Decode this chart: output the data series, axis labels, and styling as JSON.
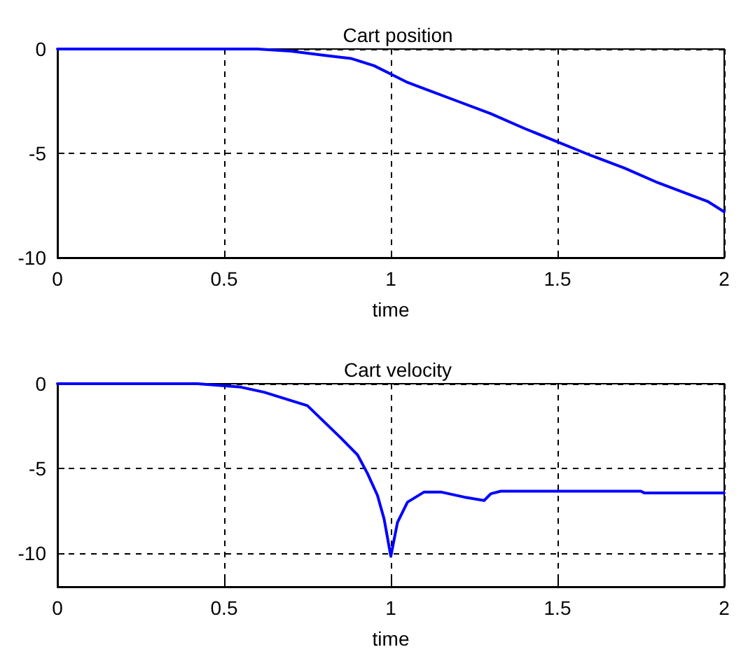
{
  "chart_data": [
    {
      "type": "line",
      "title": "Cart position",
      "xlabel": "time",
      "xlim": [
        0,
        2
      ],
      "ylim": [
        -10,
        0
      ],
      "xticks": [
        0,
        0.5,
        1,
        1.5,
        2
      ],
      "yticks": [
        -10,
        -5,
        0
      ],
      "grid": true,
      "marker": "none",
      "line_style": "solid",
      "series": [
        {
          "color": "#0000ff",
          "x": [
            0,
            0.6,
            0.7,
            0.8,
            0.88,
            0.95,
            1.0,
            1.05,
            1.1,
            1.2,
            1.3,
            1.4,
            1.5,
            1.6,
            1.7,
            1.8,
            1.9,
            1.95,
            2.0
          ],
          "values": [
            0,
            0,
            -0.1,
            -0.3,
            -0.45,
            -0.8,
            -1.2,
            -1.6,
            -1.9,
            -2.5,
            -3.1,
            -3.8,
            -4.45,
            -5.1,
            -5.7,
            -6.4,
            -7.0,
            -7.3,
            -7.8
          ]
        }
      ]
    },
    {
      "type": "line",
      "title": "Cart velocity",
      "xlabel": "time",
      "xlim": [
        0,
        2
      ],
      "ylim": [
        -12,
        0
      ],
      "xticks": [
        0,
        0.5,
        1,
        1.5,
        2
      ],
      "yticks": [
        -10,
        -5,
        0
      ],
      "grid": true,
      "marker": "none",
      "line_style": "solid",
      "series": [
        {
          "color": "#0000ff",
          "x": [
            0,
            0.42,
            0.55,
            0.62,
            0.75,
            0.85,
            0.9,
            0.93,
            0.96,
            0.98,
            1.0,
            1.02,
            1.05,
            1.1,
            1.15,
            1.22,
            1.28,
            1.3,
            1.33,
            1.75,
            1.76,
            2.0
          ],
          "values": [
            0,
            0,
            -0.2,
            -0.5,
            -1.3,
            -3.2,
            -4.2,
            -5.3,
            -6.6,
            -8.0,
            -10.2,
            -8.2,
            -7.0,
            -6.4,
            -6.4,
            -6.7,
            -6.9,
            -6.5,
            -6.35,
            -6.35,
            -6.45,
            -6.45
          ]
        }
      ]
    }
  ]
}
